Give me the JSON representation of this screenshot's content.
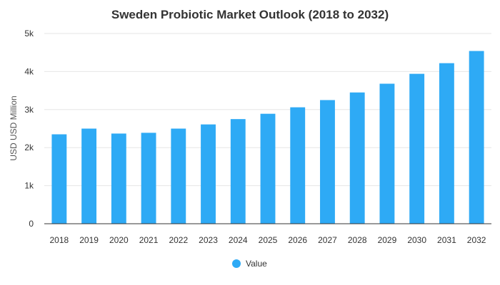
{
  "chart_data": {
    "type": "bar",
    "title": "Sweden Probiotic Market Outlook (2018 to 2032)",
    "xlabel": "",
    "ylabel": "USD USD Million",
    "categories": [
      "2018",
      "2019",
      "2020",
      "2021",
      "2022",
      "2023",
      "2024",
      "2025",
      "2026",
      "2027",
      "2028",
      "2029",
      "2030",
      "2031",
      "2032"
    ],
    "series": [
      {
        "name": "Value",
        "color": "#2eaaf5",
        "values": [
          2350,
          2500,
          2370,
          2390,
          2500,
          2610,
          2750,
          2890,
          3060,
          3250,
          3450,
          3680,
          3940,
          4220,
          4540
        ]
      }
    ],
    "ylim": [
      0,
      5000
    ],
    "yticks": [
      0,
      1000,
      2000,
      3000,
      4000,
      5000
    ],
    "ytick_labels": [
      "0",
      "1k",
      "2k",
      "3k",
      "4k",
      "5k"
    ],
    "grid": true,
    "legend_position": "bottom-center"
  }
}
